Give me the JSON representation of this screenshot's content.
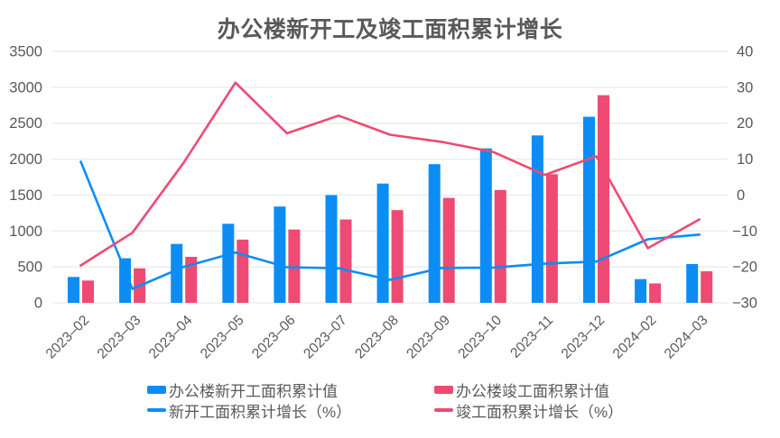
{
  "chart_data": {
    "type": "combo-bar-line",
    "title": "办公楼新开工及竣工面积累计增长",
    "categories": [
      "2023–02",
      "2023–03",
      "2023–04",
      "2023–05",
      "2023–06",
      "2023–07",
      "2023–08",
      "2023–09",
      "2023–10",
      "2023–11",
      "2023–12",
      "2024–02",
      "2024–03"
    ],
    "series": [
      {
        "name": "办公楼新开工面积累计值",
        "type": "bar",
        "axis": "left",
        "color": "#0b8df5",
        "values": [
          360,
          620,
          820,
          1100,
          1340,
          1500,
          1660,
          1930,
          2150,
          2330,
          2590,
          330,
          540
        ]
      },
      {
        "name": "办公楼竣工面积累计值",
        "type": "bar",
        "axis": "left",
        "color": "#ee4a73",
        "values": [
          310,
          480,
          640,
          880,
          1020,
          1160,
          1290,
          1460,
          1570,
          1790,
          2890,
          270,
          440
        ]
      },
      {
        "name": "新开工面积累计增长（%）",
        "type": "line",
        "axis": "right",
        "color": "#0b8df5",
        "values": [
          9.3,
          -26.1,
          -20.0,
          -16.0,
          -20.1,
          -20.4,
          -23.6,
          -20.3,
          -20.2,
          -19.1,
          -18.5,
          -12.3,
          -11.0
        ]
      },
      {
        "name": "竣工面积累计增长（%）",
        "type": "line",
        "axis": "right",
        "color": "#ee4a73",
        "values": [
          -19.6,
          -10.5,
          9.1,
          31.3,
          17.2,
          22.1,
          16.8,
          14.8,
          12.0,
          5.6,
          10.8,
          -14.8,
          -6.8
        ]
      }
    ],
    "axes": {
      "left": {
        "min": 0,
        "max": 3500,
        "ticks": [
          3500,
          3000,
          2500,
          2000,
          1500,
          1000,
          500,
          0
        ]
      },
      "right": {
        "min": -30,
        "max": 40,
        "ticks": [
          40,
          30,
          20,
          10,
          0,
          -10,
          -20,
          -30
        ],
        "tick_labels": [
          "40",
          "30",
          "20",
          "10",
          "0",
          "−10",
          "−20",
          "−30"
        ]
      }
    },
    "grid": "horizontal-only",
    "legend_position": "bottom",
    "colors": {
      "text": "#595959",
      "grid": "#e9e9e9",
      "background": "#ffffff"
    }
  }
}
